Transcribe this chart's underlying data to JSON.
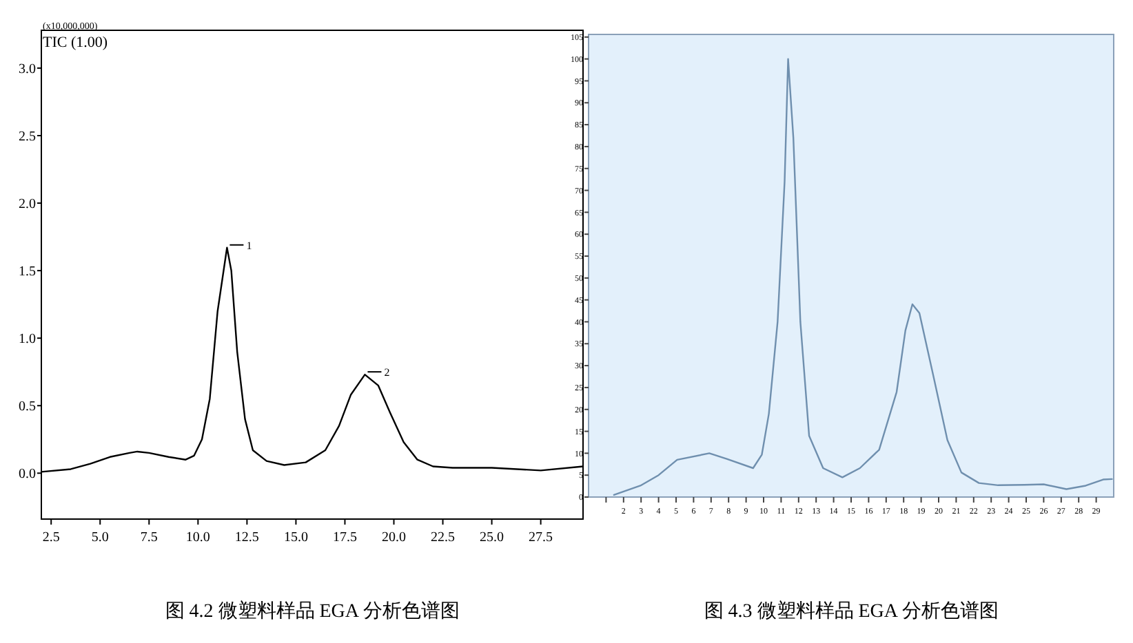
{
  "chart_data": [
    {
      "type": "line",
      "title": "图 4.2  微塑料样品 EGA 分析色谱图",
      "annotations": [
        "(x10,000,000)",
        "TIC (1.00)",
        {
          "text": "1",
          "x": 11.48,
          "y": 1.67
        },
        {
          "text": "2",
          "x": 18.52,
          "y": 0.73
        }
      ],
      "xlim": [
        2,
        29.66
      ],
      "ylim": [
        -0.34,
        3.28
      ],
      "xticks": [
        {
          "value": 2.5,
          "label": "2.5"
        },
        {
          "value": 5,
          "label": "5.0"
        },
        {
          "value": 7.5,
          "label": "7.5"
        },
        {
          "value": 10,
          "label": "10.0"
        },
        {
          "value": 12.5,
          "label": "12.5"
        },
        {
          "value": 15,
          "label": "15.0"
        },
        {
          "value": 17.5,
          "label": "17.5"
        },
        {
          "value": 20,
          "label": "20.0"
        },
        {
          "value": 22.5,
          "label": "22.5"
        },
        {
          "value": 25,
          "label": "25.0"
        },
        {
          "value": 27.5,
          "label": "27.5"
        }
      ],
      "yticks": [
        {
          "value": 0,
          "label": "0.0"
        },
        {
          "value": 0.5,
          "label": "0.5"
        },
        {
          "value": 1,
          "label": "1.0"
        },
        {
          "value": 1.5,
          "label": "1.5"
        },
        {
          "value": 2,
          "label": "2.0"
        },
        {
          "value": 2.5,
          "label": "2.5"
        },
        {
          "value": 3,
          "label": "3.0"
        }
      ],
      "x": [
        2,
        3.5,
        4.5,
        5.5,
        6.5,
        6.9,
        7.5,
        8.5,
        9.37,
        9.8,
        10.2,
        10.6,
        11.0,
        11.48,
        11.7,
        12.0,
        12.4,
        12.8,
        13.5,
        14.4,
        15.5,
        16.5,
        17.2,
        17.8,
        18.52,
        19.2,
        19.8,
        20.5,
        21.2,
        22,
        23,
        25,
        27.5,
        29.66
      ],
      "series": [
        {
          "color": "#000000",
          "values": [
            0.01,
            0.03,
            0.07,
            0.12,
            0.15,
            0.16,
            0.15,
            0.12,
            0.1,
            0.13,
            0.25,
            0.55,
            1.2,
            1.67,
            1.5,
            0.9,
            0.4,
            0.17,
            0.09,
            0.06,
            0.08,
            0.17,
            0.35,
            0.58,
            0.73,
            0.65,
            0.45,
            0.23,
            0.1,
            0.05,
            0.04,
            0.04,
            0.02,
            0.05
          ]
        }
      ]
    },
    {
      "type": "line",
      "title": "图 4.3  微塑料样品 EGA 分析色谱图",
      "xlim": [
        0,
        30
      ],
      "ylim": [
        0,
        105.6
      ],
      "xticks": [
        {
          "value": 1,
          "label": null
        },
        2,
        3,
        4,
        5,
        6,
        7,
        8,
        9,
        10,
        11,
        12,
        13,
        14,
        15,
        16,
        17,
        18,
        19,
        20,
        21,
        22,
        23,
        24,
        25,
        26,
        27,
        28,
        29
      ],
      "yticks": [
        0,
        5,
        10,
        15,
        20,
        25,
        30,
        35,
        40,
        45,
        50,
        55,
        60,
        65,
        70,
        75,
        80,
        85,
        90,
        95,
        100,
        105
      ],
      "x": [
        1.45,
        2.96,
        4.0,
        5.06,
        6.9,
        7.9,
        9.4,
        9.9,
        10.3,
        10.8,
        11.2,
        11.4,
        11.7,
        12.1,
        12.6,
        13.4,
        14.5,
        15.5,
        16.6,
        17.6,
        18.1,
        18.5,
        18.9,
        19.7,
        20.5,
        21.3,
        22.3,
        23.4,
        24.9,
        26,
        27.3,
        28.4,
        29.4,
        29.9
      ],
      "series": [
        {
          "color": "#6f8fae",
          "values": [
            0.5,
            2.6,
            5,
            8.5,
            10,
            8.7,
            6.6,
            9.7,
            19,
            40,
            72,
            100,
            82,
            40,
            14,
            6.6,
            4.5,
            6.6,
            10.8,
            24,
            38,
            44,
            42,
            27.6,
            13,
            5.6,
            3.2,
            2.7,
            2.8,
            2.9,
            1.8,
            2.6,
            4,
            4.1
          ]
        }
      ]
    }
  ]
}
